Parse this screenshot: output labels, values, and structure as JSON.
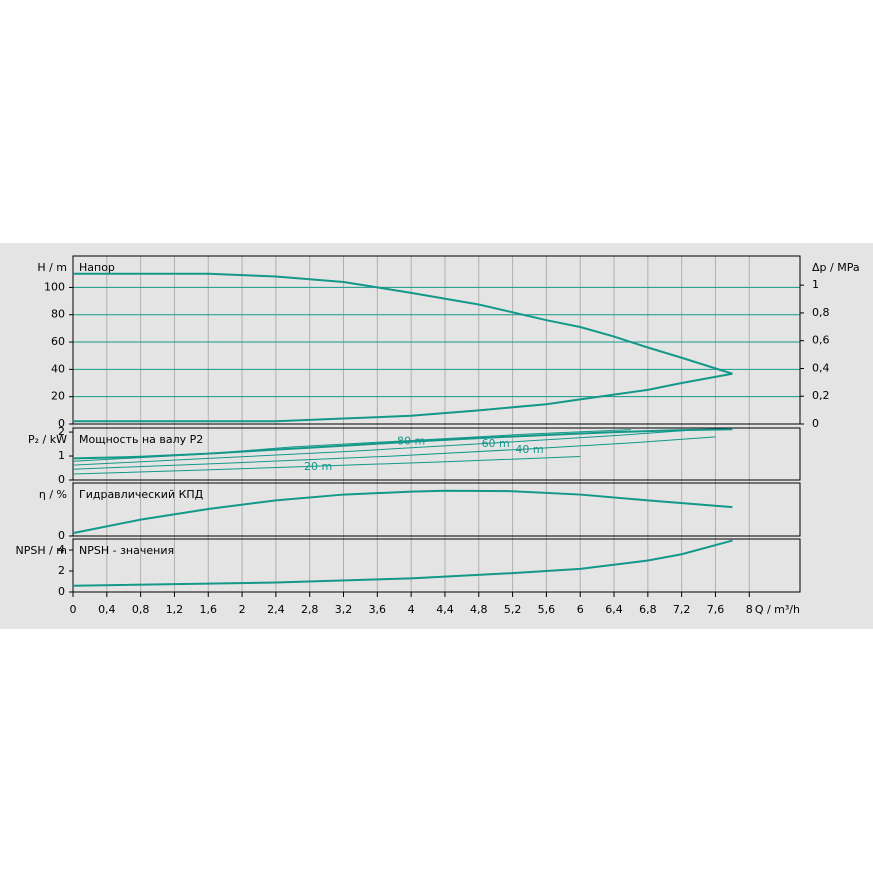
{
  "chart_data": [
    {
      "type": "line",
      "title": "Напор",
      "ylabel": "H / m",
      "ylim": [
        0,
        123
      ],
      "yticks": [
        0,
        20,
        40,
        60,
        80,
        100
      ],
      "grid": true,
      "y2label": "Δp / MPa",
      "y2lim": [
        0,
        1.21
      ],
      "y2ticks": [
        0,
        {
          "value": 0.2,
          "label": "0,2"
        },
        {
          "value": 0.4,
          "label": "0,4"
        },
        {
          "value": 0.6,
          "label": "0,6"
        },
        {
          "value": 0.8,
          "label": "0,8"
        },
        1
      ],
      "series": [
        {
          "color": "#13988a",
          "line_width": 2,
          "x": [
            0,
            0.8,
            1.6,
            2.4,
            3.2,
            3.6,
            4,
            4.8,
            5.6,
            6,
            6.4,
            6.8,
            7.2,
            7.8
          ],
          "values": [
            110,
            110,
            110,
            108,
            104,
            100,
            96,
            87.5,
            76,
            71,
            64,
            56,
            48.5,
            36.8
          ]
        },
        {
          "color": "#13988a",
          "line_width": 2,
          "x": [
            0,
            1.6,
            2.4,
            3.2,
            4,
            4.8,
            5.6,
            6,
            6.8,
            7.2,
            7.8
          ],
          "values": [
            2,
            2,
            2,
            4,
            6,
            10,
            14.5,
            18,
            25,
            30,
            36.8
          ]
        }
      ]
    },
    {
      "type": "line",
      "title": "Мощность на валу P2",
      "ylabel": "P₂ / kW",
      "ylim": [
        0,
        2.17
      ],
      "yticks": [
        0,
        1,
        2
      ],
      "grid": false,
      "series": [
        {
          "color": "#13988a",
          "line_width": 2,
          "x": [
            0,
            0.8,
            1.6,
            2.4,
            3.2,
            4,
            4.8,
            5.6,
            6.4,
            7.2,
            7.8
          ],
          "values": [
            0.9,
            0.97,
            1.1,
            1.27,
            1.43,
            1.6,
            1.75,
            1.88,
            2,
            2.08,
            2.12
          ]
        },
        {
          "name": "80 m",
          "color": "#13988a",
          "line_width": 1,
          "x": [
            0,
            1.4,
            2.6,
            4,
            5.4,
            6.6
          ],
          "values": [
            0.78,
            1.05,
            1.38,
            1.65,
            1.92,
            2.1
          ]
        },
        {
          "name": "60 m",
          "color": "#13988a",
          "line_width": 1,
          "x": [
            0,
            1.6,
            3.3,
            5,
            6.4,
            7.4
          ],
          "values": [
            0.62,
            0.9,
            1.2,
            1.55,
            1.85,
            2.1
          ]
        },
        {
          "name": "40 m",
          "color": "#13988a",
          "line_width": 1,
          "x": [
            0,
            1.8,
            3.8,
            5.4,
            6.6,
            7.6
          ],
          "values": [
            0.45,
            0.7,
            1,
            1.3,
            1.55,
            1.8
          ]
        },
        {
          "name": "20 m",
          "color": "#13988a",
          "line_width": 1,
          "x": [
            0,
            1.4,
            2.9,
            4.4,
            6
          ],
          "values": [
            0.25,
            0.4,
            0.58,
            0.76,
            0.98
          ]
        }
      ]
    },
    {
      "type": "line",
      "title": "Гидравлический КПД",
      "ylabel": "η / %",
      "ylim": [
        0,
        55
      ],
      "yticks": [
        0
      ],
      "grid": false,
      "series": [
        {
          "color": "#13988a",
          "line_width": 2,
          "x": [
            0,
            0.8,
            1.6,
            2.4,
            3.2,
            4,
            4.4,
            5.2,
            6,
            6.8,
            7.8
          ],
          "values": [
            3,
            17,
            28,
            37,
            43,
            46,
            47,
            46.5,
            43,
            37,
            30
          ]
        }
      ]
    },
    {
      "type": "line",
      "title": "NPSH - значения",
      "ylabel": "NPSH / m",
      "ylim": [
        0,
        5.05
      ],
      "yticks": [
        0,
        2,
        4
      ],
      "grid": false,
      "xlabel": "Q / m³/h",
      "xlim": [
        0,
        8.6
      ],
      "xticks": [
        0,
        {
          "value": 0.4,
          "label": "0,4"
        },
        {
          "value": 0.8,
          "label": "0,8"
        },
        {
          "value": 1.2,
          "label": "1,2"
        },
        {
          "value": 1.6,
          "label": "1,6"
        },
        2,
        {
          "value": 2.4,
          "label": "2,4"
        },
        {
          "value": 2.8,
          "label": "2,8"
        },
        {
          "value": 3.2,
          "label": "3,2"
        },
        {
          "value": 3.6,
          "label": "3,6"
        },
        4,
        {
          "value": 4.4,
          "label": "4,4"
        },
        {
          "value": 4.8,
          "label": "4,8"
        },
        {
          "value": 5.2,
          "label": "5,2"
        },
        {
          "value": 5.6,
          "label": "5,6"
        },
        6,
        {
          "value": 6.4,
          "label": "6,4"
        },
        {
          "value": 6.8,
          "label": "6,8"
        },
        {
          "value": 7.2,
          "label": "7,2"
        },
        {
          "value": 7.6,
          "label": "7,6"
        },
        8
      ],
      "series": [
        {
          "color": "#13988a",
          "line_width": 2,
          "x": [
            0,
            2.4,
            4,
            5.2,
            6,
            6.8,
            7.2,
            7.8
          ],
          "values": [
            0.6,
            0.9,
            1.3,
            1.8,
            2.2,
            3,
            3.6,
            4.9
          ]
        }
      ]
    }
  ]
}
